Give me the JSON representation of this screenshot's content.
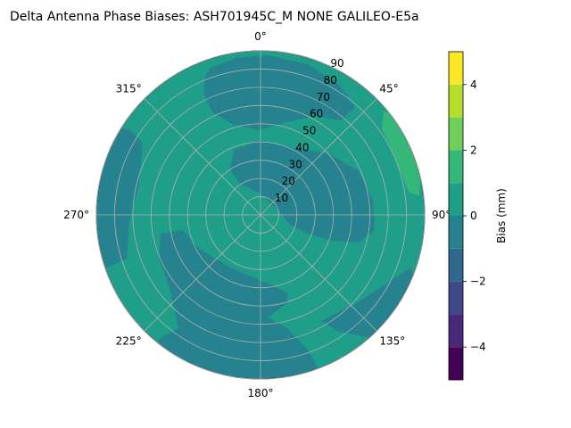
{
  "chart_data": {
    "type": "polar-contour",
    "title": "Delta Antenna Phase Biases: ASH701945C_M    NONE GALILEO-E5a",
    "angle_labels": [
      "0°",
      "45°",
      "90°",
      "135°",
      "180°",
      "225°",
      "270°",
      "315°"
    ],
    "angles_deg": [
      0,
      45,
      90,
      135,
      180,
      225,
      270,
      315
    ],
    "radial_labels": [
      "10",
      "20",
      "30",
      "40",
      "50",
      "60",
      "70",
      "80",
      "90"
    ],
    "radial_values": [
      10,
      20,
      30,
      40,
      50,
      60,
      70,
      80,
      90
    ],
    "radial_max": 90,
    "colorbar": {
      "label": "Bias (mm)",
      "levels": [
        -5,
        -4,
        -3,
        -2,
        -1,
        0,
        1,
        2,
        3,
        4,
        5
      ],
      "ticks": [
        -4,
        -2,
        0,
        2,
        4
      ],
      "tick_labels": [
        "−4",
        "−2",
        "0",
        "2",
        "4"
      ],
      "colors": [
        "#440154",
        "#482878",
        "#3e4a89",
        "#31688e",
        "#26828e",
        "#1f9e89",
        "#35b779",
        "#6ece58",
        "#b5de2b",
        "#fde725"
      ]
    },
    "regions": [
      {
        "band": "-1 to 0",
        "color": "#26828e",
        "description": "bias between -1 and 0 mm"
      },
      {
        "band": "0 to 1",
        "color": "#1f9e89",
        "description": "bias between 0 and 1 mm"
      },
      {
        "band": "1 to 2",
        "color": "#35b779",
        "description": "bias between 1 and 2 mm"
      }
    ],
    "grid": true
  }
}
